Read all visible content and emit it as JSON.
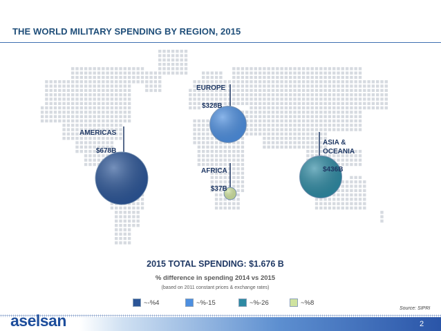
{
  "slide": {
    "title": "THE WORLD MILITARY SPENDING BY REGION, 2015",
    "total_spending": "2015 TOTAL SPENDING: $1.676 B",
    "subtitle": "% difference in spending 2014 vs 2015",
    "note": "(based on 2011 constant prices & exchange rates)",
    "source": "Source: SIPRI",
    "logo": "aselsan",
    "page_number": "2"
  },
  "chart_data": {
    "type": "bubble-map",
    "title": "THE WORLD MILITARY SPENDING BY REGION, 2015",
    "unit": "$ billion",
    "regions": [
      {
        "name": "AMERICAS",
        "value_label": "$678B",
        "value": 678,
        "change_label": "~-%4",
        "change": -4,
        "color": "#2b5597"
      },
      {
        "name": "EUROPE",
        "value_label": "$328B",
        "value": 328,
        "change_label": "~%-15",
        "change": -15,
        "color": "#4d8fe0"
      },
      {
        "name": "AFRICA",
        "value_label": "$37B",
        "value": 37,
        "change_label": "~%8",
        "change": 8,
        "color": "#cfe3a0"
      },
      {
        "name": "ASIA &\nOCEANIA",
        "value_label": "$436B",
        "value": 436,
        "change_label": "~%-26",
        "change": -26,
        "color": "#2e8aa3"
      }
    ],
    "legend": [
      {
        "label": "~-%4",
        "color": "#2b5597"
      },
      {
        "label": "~%-15",
        "color": "#4d8fe0"
      },
      {
        "label": "~%-26",
        "color": "#2e8aa3"
      },
      {
        "label": "~%8",
        "color": "#cfe3a0"
      }
    ],
    "total": 1676,
    "total_label": "2015 TOTAL SPENDING: $1.676 B"
  }
}
